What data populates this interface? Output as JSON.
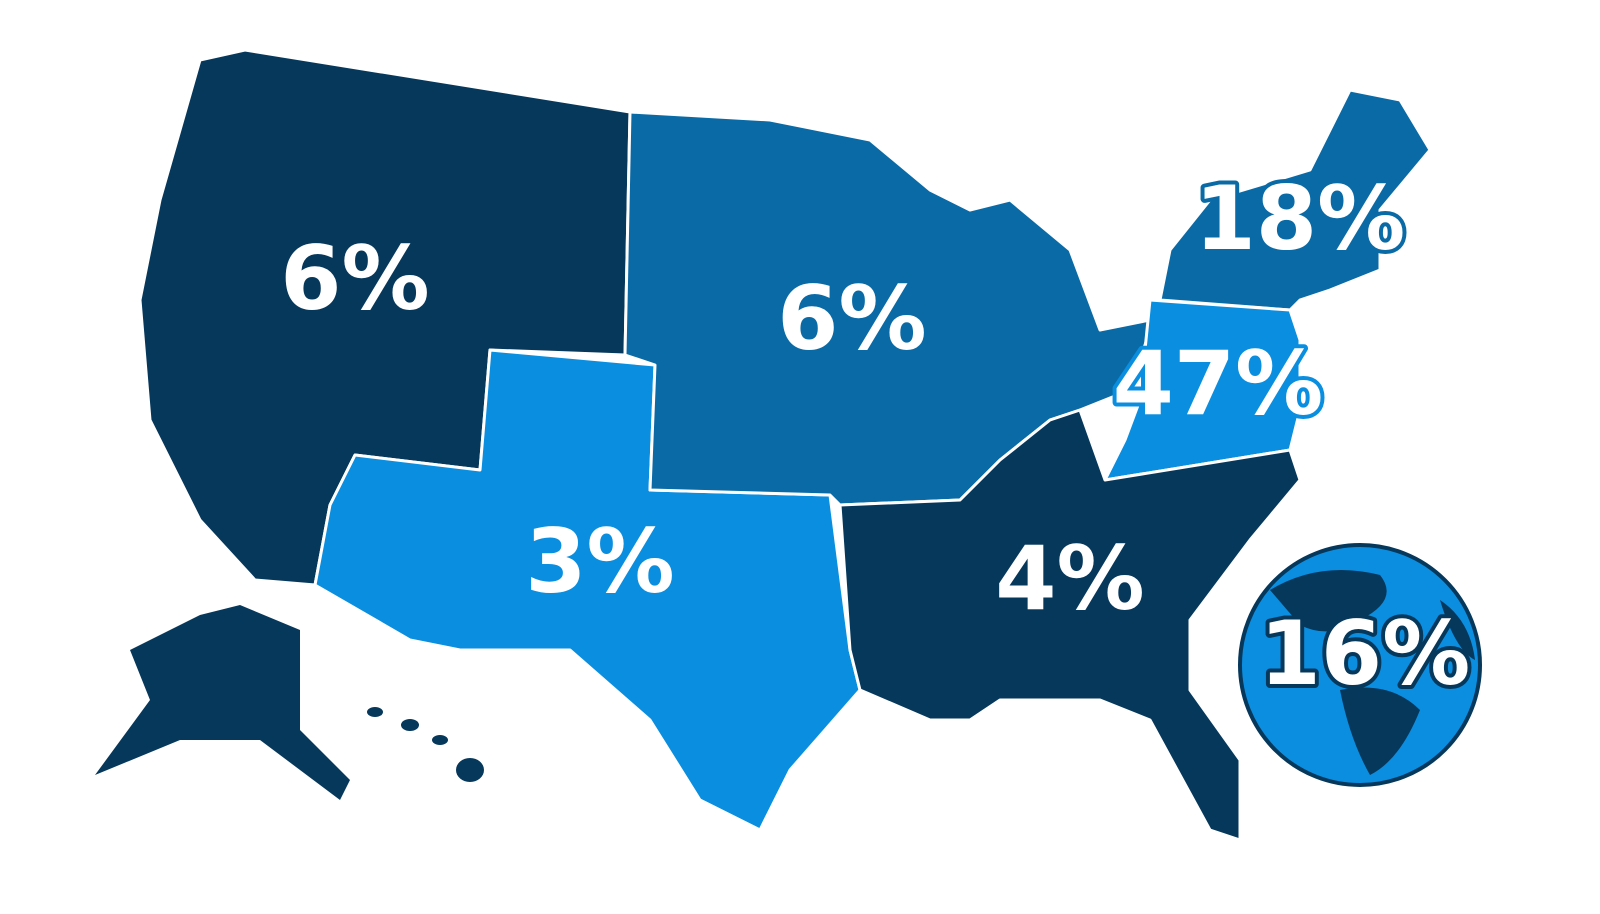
{
  "regions": [
    {
      "label": "6%"
    },
    {
      "label": "6%"
    },
    {
      "label": "18%"
    },
    {
      "label": "47%"
    },
    {
      "label": "3%"
    },
    {
      "label": "4%"
    },
    {
      "label": "16%"
    }
  ]
}
